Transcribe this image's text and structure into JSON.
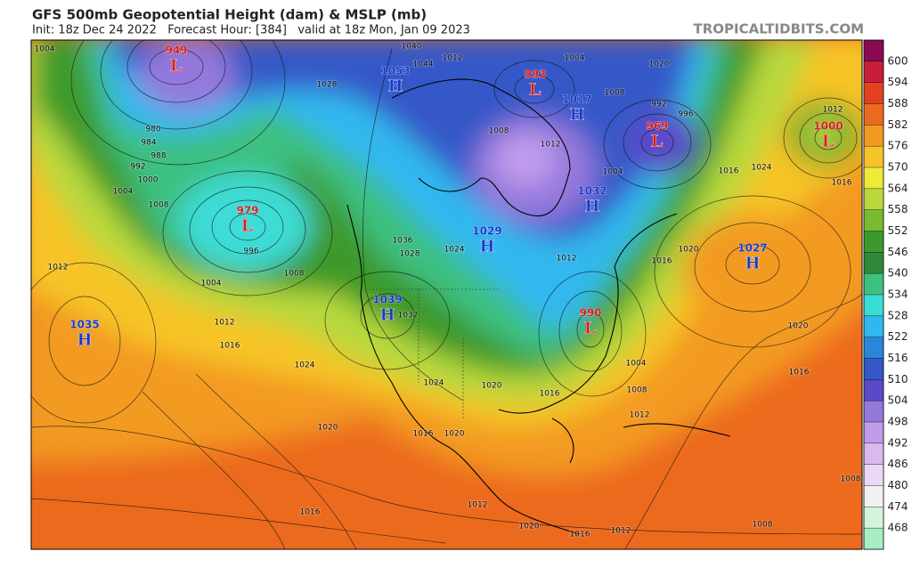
{
  "header": {
    "title": "GFS 500mb Geopotential Height (dam) & MSLP (mb)",
    "subtitle": "Init: 18z Dec 24 2022   Forecast Hour: [384]   valid at 18z Mon, Jan 09 2023",
    "source": "TROPICALTIDBITS.COM"
  },
  "colorbar": {
    "labels": [
      600,
      594,
      588,
      582,
      576,
      570,
      564,
      558,
      552,
      546,
      540,
      534,
      528,
      522,
      516,
      510,
      504,
      498,
      492,
      486,
      480,
      474,
      468
    ],
    "colors": [
      "#8a0a52",
      "#c81e3a",
      "#e2421f",
      "#ec6a1e",
      "#f39a22",
      "#f6c428",
      "#eeea3a",
      "#b8d83c",
      "#78bb32",
      "#3c9a2c",
      "#2e8a3a",
      "#3ec080",
      "#3cdcd6",
      "#30b8ee",
      "#2a86d8",
      "#3558c8",
      "#5a4ac8",
      "#9478dc",
      "#c09cec",
      "#dcb8f0",
      "#ecd8f4",
      "#f2f0f2",
      "#d4f4dc",
      "#a8eec4"
    ]
  },
  "pressure_centers": [
    {
      "letter": "L",
      "value": 949
    },
    {
      "letter": "H",
      "value": 1053
    },
    {
      "letter": "L",
      "value": 993
    },
    {
      "letter": "H",
      "value": 1017
    },
    {
      "letter": "L",
      "value": 969
    },
    {
      "letter": "L",
      "value": 1000
    },
    {
      "letter": "L",
      "value": 979
    },
    {
      "letter": "H",
      "value": 1029
    },
    {
      "letter": "H",
      "value": 1032
    },
    {
      "letter": "H",
      "value": 1027
    },
    {
      "letter": "H",
      "value": 1039
    },
    {
      "letter": "L",
      "value": 990
    },
    {
      "letter": "H",
      "value": 1035
    }
  ],
  "isobar_labels": [
    1004,
    1040,
    1044,
    1028,
    1012,
    1020,
    1004,
    1008,
    992,
    996,
    1008,
    1012,
    1004,
    1016,
    1024,
    1016,
    1012,
    984,
    980,
    988,
    992,
    1004,
    1000,
    1008,
    996,
    1004,
    1008,
    1012,
    1016,
    1024,
    1012,
    1020,
    1016,
    1024,
    1020,
    1016,
    1008,
    1004,
    1012,
    1020,
    1016,
    1020,
    1016,
    1036,
    1028,
    1024,
    1012,
    1032,
    1016,
    1020,
    1012,
    1020,
    1016,
    1012,
    1008,
    1008
  ]
}
